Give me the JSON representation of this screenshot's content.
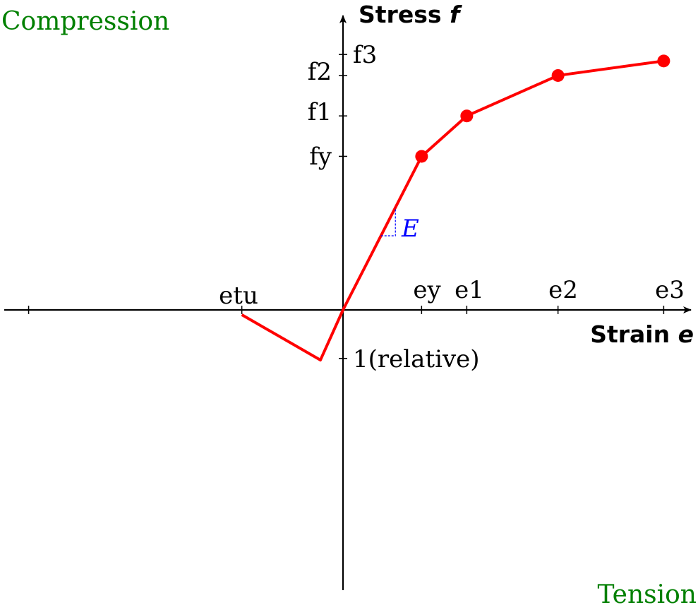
{
  "colors": {
    "curve": "#ff0000",
    "axis": "#000000",
    "region_label": "#008000",
    "modulus": "#0000ff"
  },
  "region_labels": {
    "compression": "Compression",
    "tension": "Tension"
  },
  "modulus_label": "E",
  "chart_data": {
    "type": "line",
    "title": "",
    "xlabel": {
      "text": "Strain ",
      "symbol": "e"
    },
    "ylabel": {
      "text": "Stress ",
      "symbol": "f"
    },
    "x_tick_labels": [
      "etu",
      "ey",
      "e1",
      "e2",
      "e3"
    ],
    "y_tick_labels": [
      "f3",
      "f2",
      "f1",
      "fy",
      "1(relative)"
    ],
    "series": [
      {
        "points": [
          {
            "x": -1.12,
            "y": -0.03
          },
          {
            "x": -0.25,
            "y": -0.31
          },
          {
            "x": 0.0,
            "y": 0.0
          },
          {
            "x": 0.87,
            "y": 0.95
          },
          {
            "x": 1.37,
            "y": 1.2
          },
          {
            "x": 2.38,
            "y": 1.45
          },
          {
            "x": 3.55,
            "y": 1.54
          }
        ],
        "markers_at": [
          3,
          4,
          5,
          6
        ]
      }
    ],
    "xlim": [
      -3.75,
      3.8
    ],
    "ylim": [
      -1.7,
      1.78
    ],
    "grid": false,
    "axis_orientation": "compression on left and upward, tension on right and downward"
  }
}
